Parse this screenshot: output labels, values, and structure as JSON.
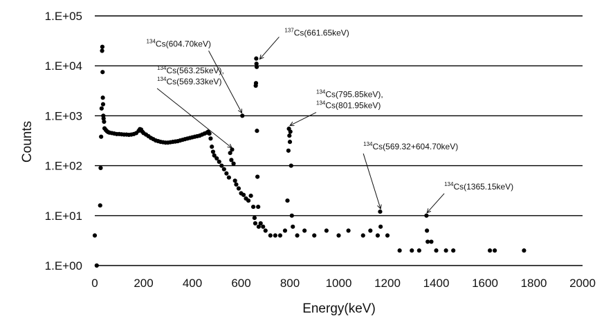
{
  "chart_data": {
    "type": "scatter",
    "xlabel": "Energy(keV)",
    "ylabel": "Counts",
    "xlim": [
      0,
      2000
    ],
    "ylim": [
      1,
      100000
    ],
    "yscale": "log",
    "x_ticks": [
      "0",
      "200",
      "400",
      "600",
      "800",
      "1000",
      "1200",
      "1400",
      "1600",
      "1800",
      "2000"
    ],
    "y_ticks": [
      "1.E+00",
      "1.E+01",
      "1.E+02",
      "1.E+03",
      "1.E+04",
      "1.E+05"
    ],
    "grid": "horizontal",
    "series": [
      {
        "points": [
          [
            0,
            4
          ],
          [
            8,
            1
          ],
          [
            22,
            16
          ],
          [
            24,
            90
          ],
          [
            26,
            380
          ],
          [
            28,
            1400
          ],
          [
            30,
            20000
          ],
          [
            31,
            24000
          ],
          [
            32,
            7500
          ],
          [
            33,
            2300
          ],
          [
            34,
            1700
          ],
          [
            35,
            1000
          ],
          [
            36,
            880
          ],
          [
            38,
            760
          ],
          [
            40,
            560
          ],
          [
            45,
            520
          ],
          [
            50,
            490
          ],
          [
            55,
            470
          ],
          [
            60,
            460
          ],
          [
            70,
            450
          ],
          [
            80,
            440
          ],
          [
            90,
            430
          ],
          [
            100,
            430
          ],
          [
            110,
            425
          ],
          [
            120,
            420
          ],
          [
            130,
            420
          ],
          [
            140,
            415
          ],
          [
            150,
            420
          ],
          [
            160,
            430
          ],
          [
            170,
            450
          ],
          [
            180,
            500
          ],
          [
            185,
            540
          ],
          [
            190,
            530
          ],
          [
            195,
            480
          ],
          [
            200,
            450
          ],
          [
            210,
            420
          ],
          [
            220,
            390
          ],
          [
            230,
            360
          ],
          [
            240,
            340
          ],
          [
            250,
            320
          ],
          [
            260,
            310
          ],
          [
            270,
            300
          ],
          [
            280,
            295
          ],
          [
            290,
            290
          ],
          [
            300,
            290
          ],
          [
            310,
            295
          ],
          [
            320,
            300
          ],
          [
            330,
            305
          ],
          [
            340,
            310
          ],
          [
            350,
            320
          ],
          [
            360,
            330
          ],
          [
            370,
            340
          ],
          [
            380,
            350
          ],
          [
            390,
            360
          ],
          [
            400,
            370
          ],
          [
            410,
            380
          ],
          [
            420,
            390
          ],
          [
            430,
            400
          ],
          [
            440,
            420
          ],
          [
            450,
            440
          ],
          [
            460,
            460
          ],
          [
            465,
            480
          ],
          [
            470,
            440
          ],
          [
            475,
            350
          ],
          [
            480,
            240
          ],
          [
            485,
            190
          ],
          [
            490,
            160
          ],
          [
            500,
            140
          ],
          [
            510,
            120
          ],
          [
            520,
            100
          ],
          [
            530,
            85
          ],
          [
            540,
            70
          ],
          [
            550,
            58
          ],
          [
            555,
            180
          ],
          [
            560,
            130
          ],
          [
            563,
            210
          ],
          [
            569,
            110
          ],
          [
            575,
            50
          ],
          [
            580,
            42
          ],
          [
            590,
            35
          ],
          [
            600,
            28
          ],
          [
            605,
            1000
          ],
          [
            610,
            26
          ],
          [
            620,
            22
          ],
          [
            630,
            20
          ],
          [
            640,
            25
          ],
          [
            650,
            15
          ],
          [
            655,
            9
          ],
          [
            658,
            7
          ],
          [
            660,
            4000
          ],
          [
            661,
            4500
          ],
          [
            662,
            14000
          ],
          [
            663,
            11000
          ],
          [
            664,
            9500
          ],
          [
            665,
            500
          ],
          [
            667,
            60
          ],
          [
            670,
            15
          ],
          [
            672,
            6
          ],
          [
            680,
            7
          ],
          [
            690,
            6
          ],
          [
            700,
            5
          ],
          [
            720,
            4
          ],
          [
            740,
            4
          ],
          [
            760,
            4
          ],
          [
            780,
            5
          ],
          [
            790,
            20
          ],
          [
            794,
            200
          ],
          [
            796,
            550
          ],
          [
            798,
            400
          ],
          [
            800,
            300
          ],
          [
            802,
            480
          ],
          [
            805,
            100
          ],
          [
            808,
            10
          ],
          [
            812,
            6
          ],
          [
            830,
            4
          ],
          [
            860,
            5
          ],
          [
            900,
            4
          ],
          [
            950,
            5
          ],
          [
            1000,
            4
          ],
          [
            1040,
            5
          ],
          [
            1100,
            4
          ],
          [
            1130,
            5
          ],
          [
            1160,
            4
          ],
          [
            1170,
            12
          ],
          [
            1172,
            6
          ],
          [
            1200,
            4
          ],
          [
            1250,
            2
          ],
          [
            1300,
            2
          ],
          [
            1330,
            2
          ],
          [
            1360,
            10
          ],
          [
            1362,
            5
          ],
          [
            1365,
            3
          ],
          [
            1380,
            3
          ],
          [
            1400,
            2
          ],
          [
            1440,
            2
          ],
          [
            1470,
            2
          ],
          [
            1620,
            2
          ],
          [
            1640,
            2
          ],
          [
            1760,
            2
          ]
        ]
      }
    ],
    "annotations": [
      {
        "isotope_sup": "137",
        "text": "Cs(661.65keV)",
        "x": 665,
        "y": 12000
      },
      {
        "isotope_sup": "134",
        "text": "Cs(604.70keV)",
        "x": 603,
        "y": 1000
      },
      {
        "isotope_sup": "134",
        "text": "Cs(563.25keV),",
        "text2_sup": "134",
        "text2": "Cs(569.33keV)",
        "x": 562,
        "y": 200
      },
      {
        "isotope_sup": "134",
        "text": "Cs(795.85keV),",
        "text2_sup": "134",
        "text2": "Cs(801.95keV)",
        "x": 800,
        "y": 560
      },
      {
        "isotope_sup": "134",
        "text": "Cs(569.32+604.70keV)",
        "x": 1172,
        "y": 12
      },
      {
        "isotope_sup": "134",
        "text": "Cs(1365.15keV)",
        "x": 1362,
        "y": 10
      }
    ]
  }
}
